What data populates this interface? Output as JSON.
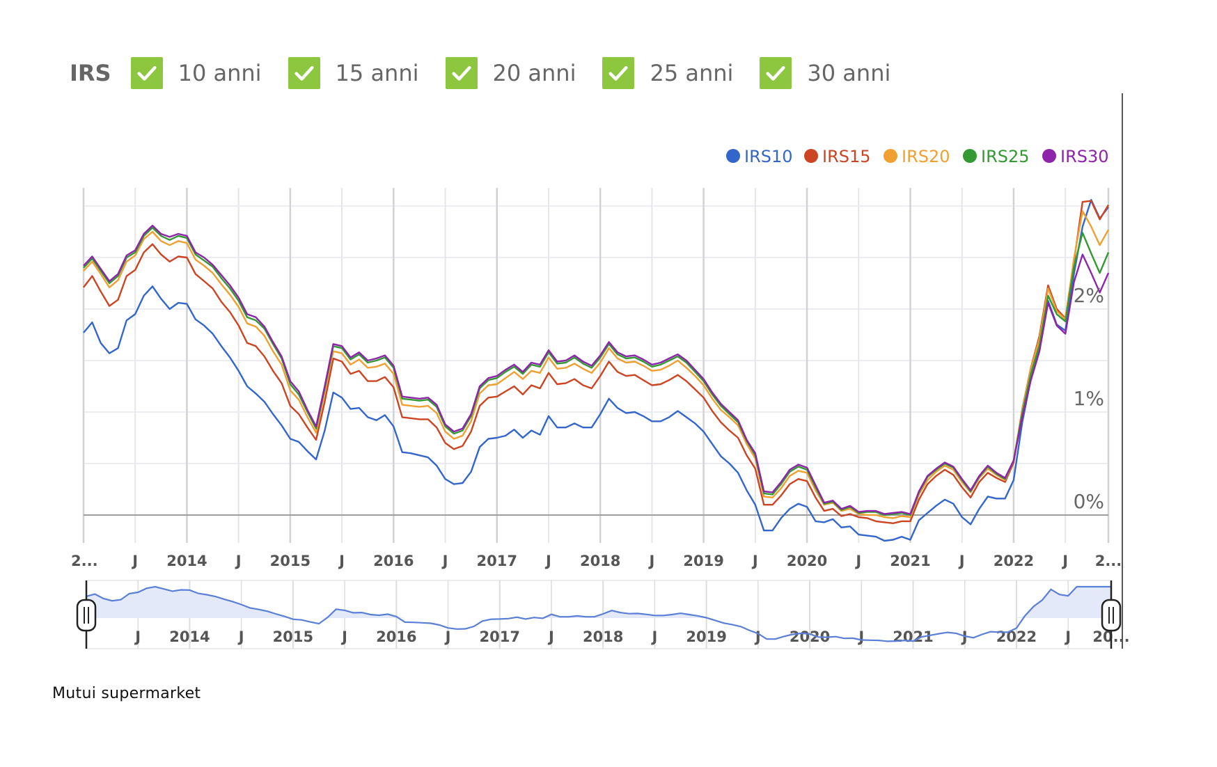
{
  "filters": {
    "title": "IRS",
    "items": [
      {
        "label": "10 anni",
        "checked": true
      },
      {
        "label": "15 anni",
        "checked": true
      },
      {
        "label": "20 anni",
        "checked": true
      },
      {
        "label": "25 anni",
        "checked": true
      },
      {
        "label": "30 anni",
        "checked": true
      }
    ]
  },
  "source": "Mutui supermarket",
  "chart_data": {
    "type": "line",
    "title": "",
    "xlabel": "",
    "ylabel": "",
    "legend_position": "top-right",
    "grid": true,
    "x_range": [
      "2013-01",
      "2022-12"
    ],
    "ylim": [
      -0.3,
      3.2
    ],
    "y_ticks": [
      {
        "value": 0,
        "label": "0%"
      },
      {
        "value": 1,
        "label": "1%"
      },
      {
        "value": 2,
        "label": "2%"
      }
    ],
    "x_ticks": [
      {
        "date": "2013-01",
        "label": "2..."
      },
      {
        "date": "2013-07",
        "label": "J"
      },
      {
        "date": "2014-01",
        "label": "2014"
      },
      {
        "date": "2014-07",
        "label": "J"
      },
      {
        "date": "2015-01",
        "label": "2015"
      },
      {
        "date": "2015-07",
        "label": "J"
      },
      {
        "date": "2016-01",
        "label": "2016"
      },
      {
        "date": "2016-07",
        "label": "J"
      },
      {
        "date": "2017-01",
        "label": "2017"
      },
      {
        "date": "2017-07",
        "label": "J"
      },
      {
        "date": "2018-01",
        "label": "2018"
      },
      {
        "date": "2018-07",
        "label": "J"
      },
      {
        "date": "2019-01",
        "label": "2019"
      },
      {
        "date": "2019-07",
        "label": "J"
      },
      {
        "date": "2020-01",
        "label": "2020"
      },
      {
        "date": "2020-07",
        "label": "J"
      },
      {
        "date": "2021-01",
        "label": "2021"
      },
      {
        "date": "2021-07",
        "label": "J"
      },
      {
        "date": "2022-01",
        "label": "2022"
      },
      {
        "date": "2022-07",
        "label": "J"
      },
      {
        "date": "2022-12",
        "label": "2..."
      }
    ],
    "navigator_ticks": [
      {
        "date": "2013-07",
        "label": "J"
      },
      {
        "date": "2014-01",
        "label": "2014"
      },
      {
        "date": "2014-07",
        "label": "J"
      },
      {
        "date": "2015-01",
        "label": "2015"
      },
      {
        "date": "2015-07",
        "label": "J"
      },
      {
        "date": "2016-01",
        "label": "2016"
      },
      {
        "date": "2016-07",
        "label": "J"
      },
      {
        "date": "2017-01",
        "label": "2017"
      },
      {
        "date": "2017-07",
        "label": "J"
      },
      {
        "date": "2018-01",
        "label": "2018"
      },
      {
        "date": "2018-07",
        "label": "J"
      },
      {
        "date": "2019-01",
        "label": "2019"
      },
      {
        "date": "2019-07",
        "label": "J"
      },
      {
        "date": "2020-01",
        "label": "2020"
      },
      {
        "date": "2020-07",
        "label": "J"
      },
      {
        "date": "2021-01",
        "label": "2021"
      },
      {
        "date": "2021-07",
        "label": "J"
      },
      {
        "date": "2022-01",
        "label": "2022"
      },
      {
        "date": "2022-07",
        "label": "J"
      },
      {
        "date": "2022-12",
        "label": "20..."
      }
    ],
    "navigator_range": [
      "2013-01",
      "2022-12"
    ],
    "x": [
      "2013-01",
      "2013-02",
      "2013-03",
      "2013-04",
      "2013-05",
      "2013-06",
      "2013-07",
      "2013-08",
      "2013-09",
      "2013-10",
      "2013-11",
      "2013-12",
      "2014-01",
      "2014-02",
      "2014-03",
      "2014-04",
      "2014-05",
      "2014-06",
      "2014-07",
      "2014-08",
      "2014-09",
      "2014-10",
      "2014-11",
      "2014-12",
      "2015-01",
      "2015-02",
      "2015-03",
      "2015-04",
      "2015-05",
      "2015-06",
      "2015-07",
      "2015-08",
      "2015-09",
      "2015-10",
      "2015-11",
      "2015-12",
      "2016-01",
      "2016-02",
      "2016-03",
      "2016-04",
      "2016-05",
      "2016-06",
      "2016-07",
      "2016-08",
      "2016-09",
      "2016-10",
      "2016-11",
      "2016-12",
      "2017-01",
      "2017-02",
      "2017-03",
      "2017-04",
      "2017-05",
      "2017-06",
      "2017-07",
      "2017-08",
      "2017-09",
      "2017-10",
      "2017-11",
      "2017-12",
      "2018-01",
      "2018-02",
      "2018-03",
      "2018-04",
      "2018-05",
      "2018-06",
      "2018-07",
      "2018-08",
      "2018-09",
      "2018-10",
      "2018-11",
      "2018-12",
      "2019-01",
      "2019-02",
      "2019-03",
      "2019-04",
      "2019-05",
      "2019-06",
      "2019-07",
      "2019-08",
      "2019-09",
      "2019-10",
      "2019-11",
      "2019-12",
      "2020-01",
      "2020-02",
      "2020-03",
      "2020-04",
      "2020-05",
      "2020-06",
      "2020-07",
      "2020-08",
      "2020-09",
      "2020-10",
      "2020-11",
      "2020-12",
      "2021-01",
      "2021-02",
      "2021-03",
      "2021-04",
      "2021-05",
      "2021-06",
      "2021-07",
      "2021-08",
      "2021-09",
      "2021-10",
      "2021-11",
      "2021-12",
      "2022-01",
      "2022-02",
      "2022-03",
      "2022-04",
      "2022-05",
      "2022-06",
      "2022-07",
      "2022-08",
      "2022-09",
      "2022-10",
      "2022-11",
      "2022-12"
    ],
    "series": [
      {
        "name": "IRS10",
        "color": "#3366cc",
        "values": [
          1.77,
          1.87,
          1.67,
          1.57,
          1.62,
          1.89,
          1.95,
          2.13,
          2.22,
          2.1,
          2.0,
          2.06,
          2.05,
          1.9,
          1.84,
          1.76,
          1.64,
          1.53,
          1.4,
          1.25,
          1.18,
          1.1,
          0.98,
          0.87,
          0.74,
          0.71,
          0.62,
          0.54,
          0.82,
          1.19,
          1.14,
          1.03,
          1.04,
          0.95,
          0.92,
          0.97,
          0.86,
          0.61,
          0.6,
          0.58,
          0.56,
          0.48,
          0.35,
          0.3,
          0.31,
          0.42,
          0.66,
          0.74,
          0.75,
          0.77,
          0.83,
          0.75,
          0.82,
          0.78,
          0.96,
          0.85,
          0.85,
          0.89,
          0.85,
          0.85,
          0.98,
          1.13,
          1.04,
          0.99,
          1.0,
          0.96,
          0.91,
          0.91,
          0.95,
          1.01,
          0.95,
          0.89,
          0.81,
          0.69,
          0.57,
          0.5,
          0.41,
          0.24,
          0.1,
          -0.15,
          -0.15,
          -0.03,
          0.06,
          0.11,
          0.08,
          -0.06,
          -0.07,
          -0.04,
          -0.12,
          -0.11,
          -0.19,
          -0.2,
          -0.21,
          -0.25,
          -0.24,
          -0.21,
          -0.24,
          -0.05,
          0.02,
          0.09,
          0.15,
          0.11,
          -0.02,
          -0.09,
          0.06,
          0.18,
          0.16,
          0.16,
          0.34,
          0.9,
          1.32,
          1.6,
          2.08,
          1.85,
          1.79,
          2.34,
          2.8,
          3.06,
          2.88,
          2.99
        ]
      },
      {
        "name": "IRS15",
        "color": "#cc4422",
        "values": [
          2.21,
          2.32,
          2.17,
          2.03,
          2.09,
          2.32,
          2.38,
          2.55,
          2.63,
          2.53,
          2.46,
          2.51,
          2.5,
          2.34,
          2.27,
          2.2,
          2.07,
          1.97,
          1.84,
          1.67,
          1.64,
          1.54,
          1.4,
          1.28,
          1.06,
          0.98,
          0.85,
          0.73,
          1.1,
          1.52,
          1.49,
          1.37,
          1.4,
          1.3,
          1.3,
          1.34,
          1.24,
          0.95,
          0.94,
          0.93,
          0.93,
          0.85,
          0.7,
          0.64,
          0.67,
          0.81,
          1.06,
          1.14,
          1.15,
          1.2,
          1.25,
          1.17,
          1.26,
          1.23,
          1.38,
          1.27,
          1.28,
          1.32,
          1.26,
          1.23,
          1.35,
          1.49,
          1.39,
          1.35,
          1.36,
          1.31,
          1.26,
          1.27,
          1.31,
          1.36,
          1.3,
          1.22,
          1.14,
          1.01,
          0.9,
          0.82,
          0.75,
          0.58,
          0.45,
          0.1,
          0.1,
          0.19,
          0.3,
          0.35,
          0.33,
          0.17,
          0.04,
          0.06,
          -0.01,
          0.01,
          -0.02,
          -0.03,
          -0.06,
          -0.07,
          -0.08,
          -0.06,
          -0.06,
          0.15,
          0.3,
          0.38,
          0.44,
          0.39,
          0.27,
          0.17,
          0.32,
          0.41,
          0.36,
          0.32,
          0.51,
          1.03,
          1.43,
          1.74,
          2.23,
          2.0,
          1.91,
          2.46,
          3.04,
          3.05,
          2.87,
          3.01
        ]
      },
      {
        "name": "IRS20",
        "color": "#f0a030",
        "values": [
          2.37,
          2.46,
          2.34,
          2.21,
          2.28,
          2.46,
          2.52,
          2.68,
          2.75,
          2.66,
          2.62,
          2.66,
          2.64,
          2.48,
          2.42,
          2.35,
          2.24,
          2.14,
          2.02,
          1.86,
          1.83,
          1.74,
          1.59,
          1.46,
          1.21,
          1.12,
          0.95,
          0.8,
          1.19,
          1.59,
          1.57,
          1.46,
          1.51,
          1.43,
          1.44,
          1.47,
          1.37,
          1.07,
          1.06,
          1.05,
          1.06,
          0.99,
          0.81,
          0.74,
          0.77,
          0.91,
          1.18,
          1.26,
          1.27,
          1.33,
          1.39,
          1.32,
          1.4,
          1.38,
          1.53,
          1.42,
          1.43,
          1.47,
          1.42,
          1.38,
          1.48,
          1.62,
          1.52,
          1.48,
          1.49,
          1.45,
          1.4,
          1.41,
          1.45,
          1.5,
          1.43,
          1.35,
          1.26,
          1.13,
          1.02,
          0.95,
          0.87,
          0.69,
          0.55,
          0.18,
          0.17,
          0.26,
          0.38,
          0.43,
          0.41,
          0.24,
          0.1,
          0.12,
          0.04,
          0.06,
          0.01,
          0.0,
          0.0,
          -0.02,
          -0.03,
          -0.01,
          -0.02,
          0.2,
          0.34,
          0.42,
          0.48,
          0.44,
          0.32,
          0.22,
          0.36,
          0.45,
          0.39,
          0.34,
          0.53,
          1.02,
          1.42,
          1.71,
          2.2,
          1.98,
          1.9,
          2.49,
          2.95,
          2.8,
          2.62,
          2.77
        ]
      },
      {
        "name": "IRS25",
        "color": "#339933",
        "values": [
          2.4,
          2.49,
          2.37,
          2.25,
          2.32,
          2.5,
          2.55,
          2.71,
          2.79,
          2.71,
          2.67,
          2.71,
          2.69,
          2.53,
          2.47,
          2.41,
          2.3,
          2.2,
          2.08,
          1.92,
          1.89,
          1.81,
          1.66,
          1.52,
          1.27,
          1.17,
          1.0,
          0.84,
          1.23,
          1.64,
          1.62,
          1.51,
          1.56,
          1.48,
          1.5,
          1.53,
          1.43,
          1.13,
          1.12,
          1.11,
          1.12,
          1.05,
          0.86,
          0.79,
          0.82,
          0.96,
          1.23,
          1.31,
          1.33,
          1.39,
          1.44,
          1.37,
          1.46,
          1.44,
          1.58,
          1.47,
          1.48,
          1.53,
          1.47,
          1.43,
          1.53,
          1.66,
          1.56,
          1.52,
          1.53,
          1.49,
          1.44,
          1.46,
          1.5,
          1.54,
          1.48,
          1.39,
          1.3,
          1.17,
          1.06,
          0.98,
          0.9,
          0.72,
          0.58,
          0.21,
          0.2,
          0.3,
          0.42,
          0.47,
          0.44,
          0.27,
          0.11,
          0.13,
          0.05,
          0.08,
          0.02,
          0.03,
          0.03,
          0.0,
          0.01,
          0.02,
          0.0,
          0.22,
          0.37,
          0.44,
          0.5,
          0.46,
          0.34,
          0.23,
          0.37,
          0.47,
          0.4,
          0.35,
          0.53,
          0.99,
          1.37,
          1.65,
          2.13,
          1.95,
          1.88,
          2.41,
          2.74,
          2.54,
          2.35,
          2.55
        ]
      },
      {
        "name": "IRS30",
        "color": "#8e24aa",
        "values": [
          2.42,
          2.51,
          2.39,
          2.27,
          2.34,
          2.52,
          2.57,
          2.73,
          2.81,
          2.73,
          2.7,
          2.73,
          2.71,
          2.55,
          2.5,
          2.43,
          2.33,
          2.23,
          2.11,
          1.95,
          1.92,
          1.83,
          1.68,
          1.54,
          1.3,
          1.2,
          1.02,
          0.86,
          1.25,
          1.66,
          1.64,
          1.53,
          1.58,
          1.5,
          1.52,
          1.55,
          1.45,
          1.15,
          1.14,
          1.13,
          1.14,
          1.07,
          0.88,
          0.81,
          0.84,
          0.98,
          1.25,
          1.33,
          1.35,
          1.41,
          1.46,
          1.39,
          1.48,
          1.46,
          1.6,
          1.49,
          1.5,
          1.55,
          1.49,
          1.45,
          1.55,
          1.68,
          1.58,
          1.54,
          1.55,
          1.51,
          1.46,
          1.48,
          1.52,
          1.56,
          1.5,
          1.41,
          1.32,
          1.19,
          1.08,
          1.0,
          0.92,
          0.73,
          0.6,
          0.23,
          0.22,
          0.32,
          0.44,
          0.49,
          0.46,
          0.29,
          0.12,
          0.14,
          0.06,
          0.09,
          0.03,
          0.04,
          0.04,
          0.01,
          0.02,
          0.03,
          0.01,
          0.23,
          0.38,
          0.45,
          0.51,
          0.47,
          0.35,
          0.24,
          0.38,
          0.48,
          0.41,
          0.36,
          0.53,
          0.95,
          1.31,
          1.59,
          2.06,
          1.84,
          1.76,
          2.26,
          2.53,
          2.35,
          2.16,
          2.35
        ]
      }
    ]
  }
}
